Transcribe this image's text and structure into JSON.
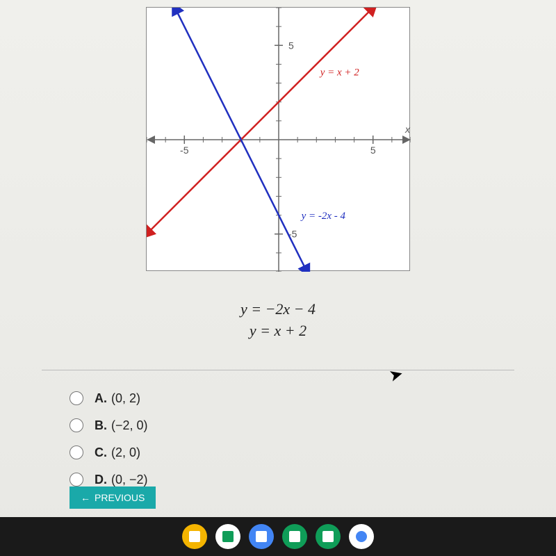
{
  "graph": {
    "type": "line",
    "xlim": [
      -7,
      7
    ],
    "ylim": [
      -7,
      7
    ],
    "xtick_major": [
      -5,
      5
    ],
    "ytick_major": [
      -5,
      5
    ],
    "xtick_minor_step": 1,
    "ytick_minor_step": 1,
    "axis_label_x": "x",
    "background_color": "#ffffff",
    "border_color": "#888888",
    "axis_color": "#666666",
    "tick_color": "#666666",
    "tick_label_fontsize": 14,
    "tick_label_color": "#555555",
    "lines": [
      {
        "equation_label": "y = x + 2",
        "label_color": "#d02020",
        "label_pos_x": 2.2,
        "label_pos_y": 3.4,
        "color": "#d02020",
        "stroke_width": 2.5,
        "x1": -7,
        "y1": -5,
        "x2": 5,
        "y2": 7,
        "arrows": true
      },
      {
        "equation_label": "y = -2x - 4",
        "label_color": "#2030c0",
        "label_pos_x": 1.2,
        "label_pos_y": -4.2,
        "color": "#2030c0",
        "stroke_width": 2.5,
        "x1": -5.5,
        "y1": 7,
        "x2": 1.5,
        "y2": -7,
        "arrows": true
      }
    ]
  },
  "equations": {
    "line1": "y = −2x − 4",
    "line2": "y = x + 2"
  },
  "options": [
    {
      "letter": "A.",
      "value": "(0, 2)"
    },
    {
      "letter": "B.",
      "value": "(−2, 0)"
    },
    {
      "letter": "C.",
      "value": "(2, 0)"
    },
    {
      "letter": "D.",
      "value": "(0, −2)"
    }
  ],
  "buttons": {
    "previous": "PREVIOUS"
  },
  "taskbar_icons": [
    {
      "name": "slides-icon",
      "bg": "#f4b400",
      "glyph_color": "#ffffff"
    },
    {
      "name": "drive-icon",
      "bg": "#ffffff",
      "glyph_color": "#0f9d58"
    },
    {
      "name": "docs-icon",
      "bg": "#4285f4",
      "glyph_color": "#ffffff"
    },
    {
      "name": "classroom-icon",
      "bg": "#0f9d58",
      "glyph_color": "#ffffff"
    },
    {
      "name": "sheets-icon",
      "bg": "#0f9d58",
      "glyph_color": "#ffffff"
    },
    {
      "name": "chrome-icon",
      "bg": "#ffffff",
      "glyph_color": "#4285f4"
    }
  ]
}
